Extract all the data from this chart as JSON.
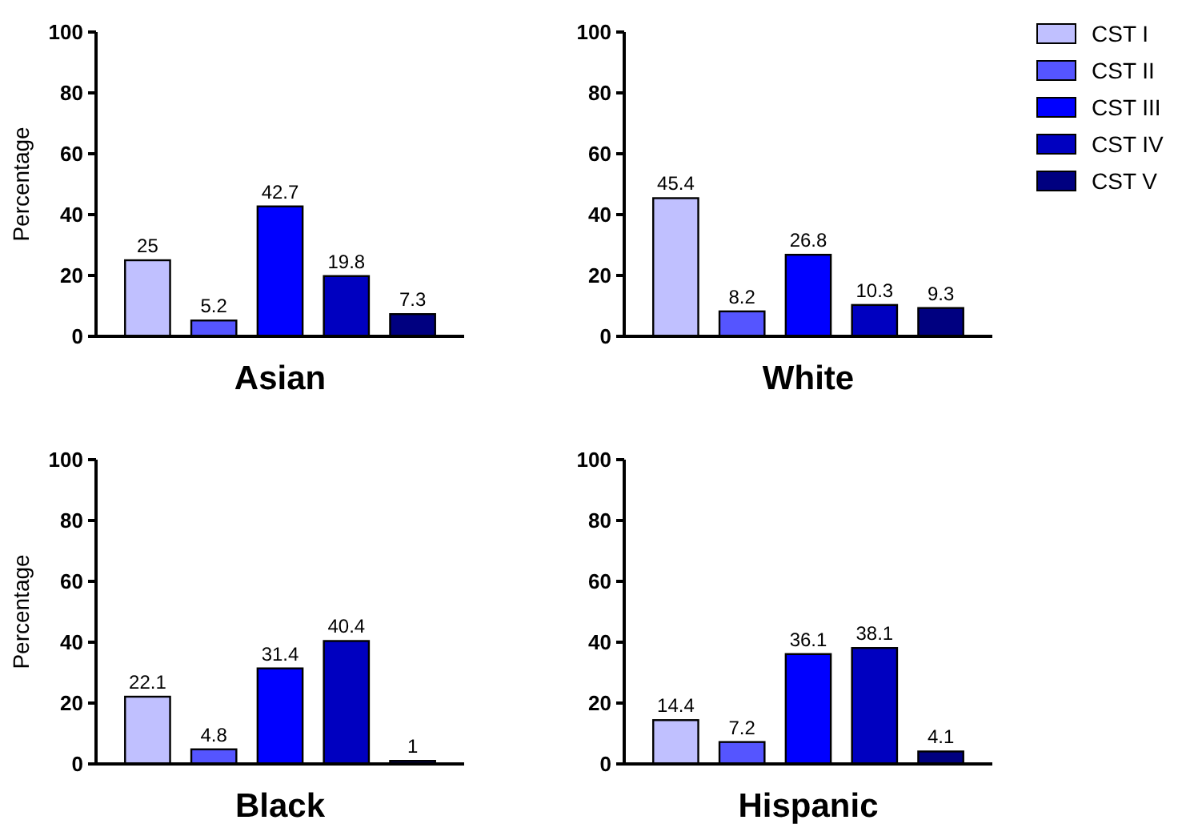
{
  "chart_data": [
    {
      "type": "bar",
      "title": "Asian",
      "ylabel": "Percentage",
      "categories": [
        null
      ],
      "ylim": [
        0,
        100
      ],
      "yticks": [
        0,
        20,
        40,
        60,
        80,
        100
      ],
      "data_labels": true,
      "legend": false,
      "series": [
        {
          "color": "#c0c0ff",
          "values": [
            25
          ]
        },
        {
          "color": "#5555ff",
          "values": [
            5.2
          ]
        },
        {
          "color": "#0000ff",
          "values": [
            42.7
          ]
        },
        {
          "color": "#0000c0",
          "values": [
            19.8
          ]
        },
        {
          "color": "#000080",
          "values": [
            7.3
          ]
        }
      ]
    },
    {
      "type": "bar",
      "title": "White",
      "categories": [
        null
      ],
      "ylim": [
        0,
        100
      ],
      "yticks": [
        0,
        20,
        40,
        60,
        80,
        100
      ],
      "data_labels": true,
      "legend": "right",
      "series": [
        {
          "name": "CST I",
          "color": "#c0c0ff",
          "values": [
            45.4
          ]
        },
        {
          "name": "CST II",
          "color": "#5555ff",
          "values": [
            8.2
          ]
        },
        {
          "name": "CST III",
          "color": "#0000ff",
          "values": [
            26.8
          ]
        },
        {
          "name": "CST IV",
          "color": "#0000c0",
          "values": [
            10.3
          ]
        },
        {
          "name": "CST V",
          "color": "#000080",
          "values": [
            9.3
          ]
        }
      ]
    },
    {
      "type": "bar",
      "title": "Black",
      "ylabel": "Percentage",
      "categories": [
        null
      ],
      "ylim": [
        0,
        100
      ],
      "yticks": [
        0,
        20,
        40,
        60,
        80,
        100
      ],
      "data_labels": true,
      "legend": false,
      "series": [
        {
          "color": "#c0c0ff",
          "values": [
            22.1
          ]
        },
        {
          "color": "#5555ff",
          "values": [
            4.8
          ]
        },
        {
          "color": "#0000ff",
          "values": [
            31.4
          ]
        },
        {
          "color": "#0000c0",
          "values": [
            40.4
          ]
        },
        {
          "color": "#000080",
          "values": [
            1
          ]
        }
      ]
    },
    {
      "type": "bar",
      "title": "Hispanic",
      "categories": [
        null
      ],
      "ylim": [
        0,
        100
      ],
      "yticks": [
        0,
        20,
        40,
        60,
        80,
        100
      ],
      "data_labels": true,
      "legend": false,
      "series": [
        {
          "color": "#c0c0ff",
          "values": [
            14.4
          ]
        },
        {
          "color": "#5555ff",
          "values": [
            7.2
          ]
        },
        {
          "color": "#0000ff",
          "values": [
            36.1
          ]
        },
        {
          "color": "#0000c0",
          "values": [
            38.1
          ]
        },
        {
          "color": "#000080",
          "values": [
            4.1
          ]
        }
      ]
    }
  ]
}
